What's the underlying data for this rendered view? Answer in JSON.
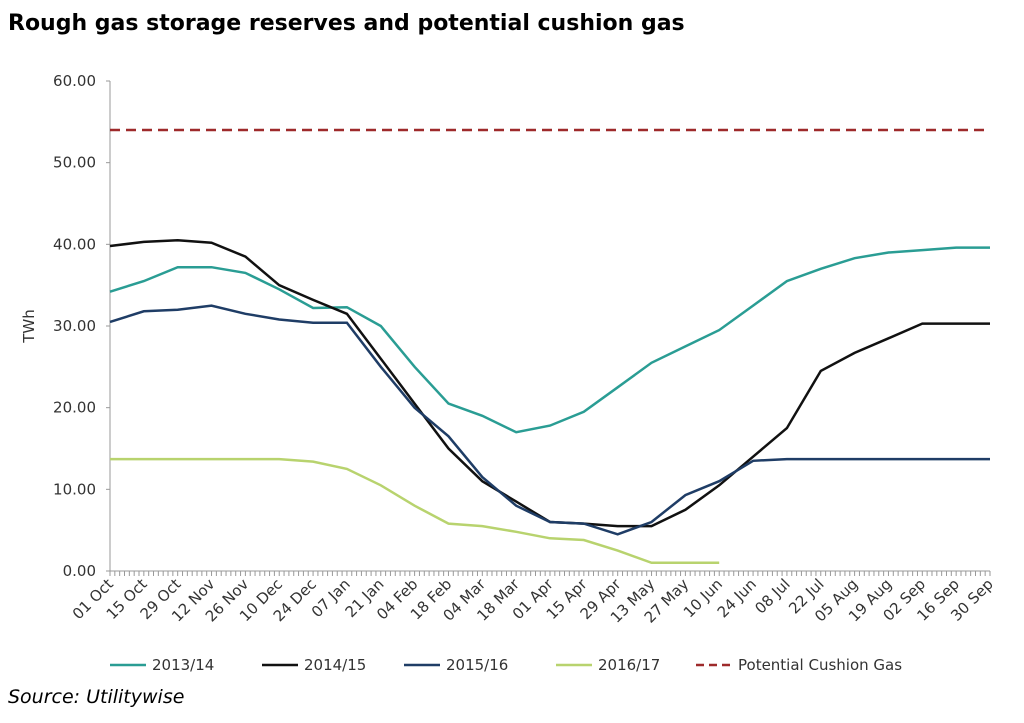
{
  "chart_data": {
    "type": "line",
    "title": "Rough gas storage reserves and potential cushion gas",
    "y_label": "TWh",
    "source": "Source: Utilitywise",
    "categories": [
      "01 Oct",
      "15 Oct",
      "29 Oct",
      "12 Nov",
      "26 Nov",
      "10 Dec",
      "24 Dec",
      "07 Jan",
      "21 Jan",
      "04 Feb",
      "18 Feb",
      "04 Mar",
      "18 Mar",
      "01 Apr",
      "15 Apr",
      "29 Apr",
      "13 May",
      "27 May",
      "10 Jun",
      "24 Jun",
      "08 Jul",
      "22 Jul",
      "05 Aug",
      "19 Aug",
      "02 Sep",
      "16 Sep",
      "30 Sep"
    ],
    "series": [
      {
        "name": "2013/14",
        "color": "#2a9d94",
        "values": [
          34.2,
          35.5,
          37.2,
          37.2,
          36.5,
          34.5,
          32.2,
          32.3,
          30,
          25,
          20.5,
          19,
          17,
          17.8,
          19.5,
          22.5,
          25.5,
          27.5,
          29.5,
          32.5,
          35.5,
          37,
          38.3,
          39,
          39.3,
          39.6,
          39.6
        ]
      },
      {
        "name": "2014/15",
        "color": "#111111",
        "values": [
          39.8,
          40.3,
          40.5,
          40.2,
          38.5,
          35,
          33.2,
          31.5,
          26,
          20.5,
          15,
          11,
          8.5,
          6,
          5.8,
          5.5,
          5.5,
          7.5,
          10.5,
          14,
          17.5,
          24.5,
          26.7,
          28.5,
          30.3,
          30.3,
          30.3
        ]
      },
      {
        "name": "2015/16",
        "color": "#1f3d66",
        "values": [
          30.5,
          31.8,
          32,
          32.5,
          31.5,
          30.8,
          30.4,
          30.4,
          25,
          20,
          16.5,
          11.5,
          8,
          6,
          5.8,
          4.5,
          6,
          9.3,
          11,
          13.5,
          13.7,
          13.7,
          13.7,
          13.7,
          13.7,
          13.7,
          13.7
        ]
      },
      {
        "name": "2016/17",
        "color": "#b8d36e",
        "values": [
          13.7,
          13.7,
          13.7,
          13.7,
          13.7,
          13.7,
          13.4,
          12.5,
          10.5,
          8,
          5.8,
          5.5,
          4.8,
          4,
          3.8,
          2.5,
          1,
          1,
          1,
          null,
          null,
          null,
          null,
          null,
          null,
          null,
          null
        ]
      },
      {
        "name": "Potential Cushion Gas",
        "color": "#9e2a2b",
        "dashed": true,
        "values": [
          54,
          54,
          54,
          54,
          54,
          54,
          54,
          54,
          54,
          54,
          54,
          54,
          54,
          54,
          54,
          54,
          54,
          54,
          54,
          54,
          54,
          54,
          54,
          54,
          54,
          54,
          54
        ]
      }
    ],
    "ylim": [
      0,
      60
    ],
    "yticks": [
      {
        "value": 0,
        "label": "0.00"
      },
      {
        "value": 10,
        "label": "10.00"
      },
      {
        "value": 20,
        "label": "20.00"
      },
      {
        "value": 30,
        "label": "30.00"
      },
      {
        "value": 40,
        "label": "40.00"
      },
      {
        "value": 50,
        "label": "50.00"
      },
      {
        "value": 60,
        "label": "60.00"
      }
    ],
    "grid": false
  }
}
